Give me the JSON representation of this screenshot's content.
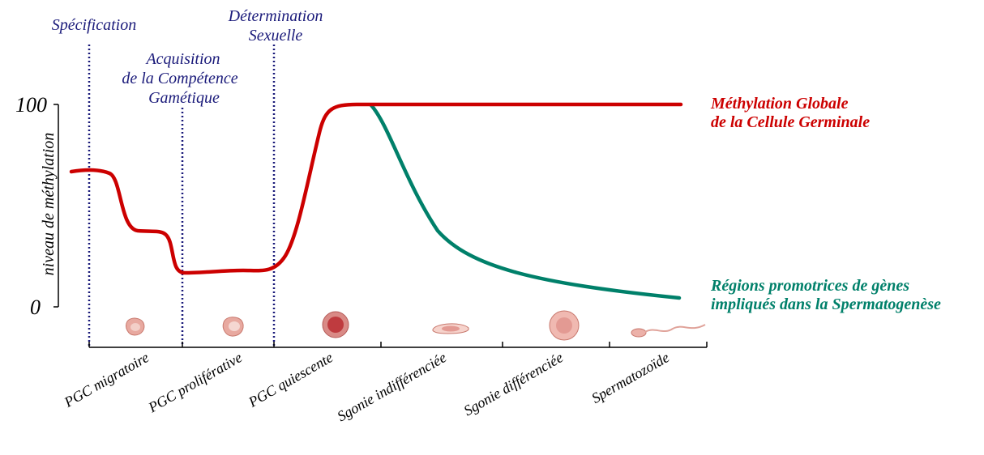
{
  "phases": {
    "specification": "Spécification",
    "acquisition": [
      "Acquisition",
      "de la Compétence",
      "Gamétique"
    ],
    "determination": [
      "Détermination",
      "Sexuelle"
    ]
  },
  "y_axis": {
    "label": "niveau de méthylation",
    "tick_max": "100",
    "tick_min": "0"
  },
  "stages": [
    "PGC migratoire",
    "PGC proliférative",
    "PGC quiescente",
    "Sgonie indifférenciée",
    "Sgonie différenciée",
    "Spermatozoïde"
  ],
  "curves": {
    "global": {
      "label": [
        "Méthylation Globale",
        "de la Cellule Germinale"
      ],
      "color": "#cc0000"
    },
    "promoters": {
      "label": [
        "Régions promotrices de gènes",
        "impliqués dans la Spermatogenèse"
      ],
      "color": "#00806a"
    }
  }
}
